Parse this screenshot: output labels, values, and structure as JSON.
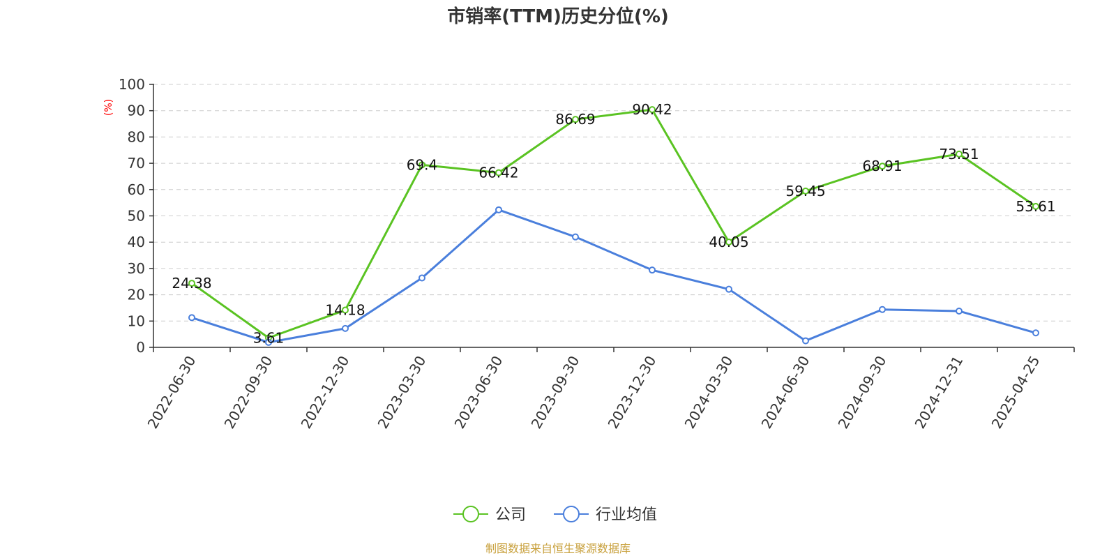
{
  "chart_data": {
    "type": "line",
    "title": "市销率(TTM)历史分位(%)",
    "ylabel": "(%)",
    "xlabel": "",
    "ylim": [
      0,
      100
    ],
    "yticks": [
      0,
      10,
      20,
      30,
      40,
      50,
      60,
      70,
      80,
      90,
      100
    ],
    "grid": true,
    "legend_position": "bottom-center",
    "categories": [
      "2022-06-30",
      "2022-09-30",
      "2022-12-30",
      "2023-03-30",
      "2023-06-30",
      "2023-09-30",
      "2023-12-30",
      "2024-03-30",
      "2024-06-30",
      "2024-09-30",
      "2024-12-31",
      "2025-04-25"
    ],
    "series": [
      {
        "name": "公司",
        "color": "#5ac322",
        "values": [
          24.38,
          3.61,
          14.18,
          69.4,
          66.42,
          86.69,
          90.42,
          40.05,
          59.45,
          68.91,
          73.51,
          53.61
        ],
        "data_labels": [
          "24.38",
          "3.61",
          "14.18",
          "69.4",
          "66.42",
          "86.69",
          "90.42",
          "40.05",
          "59.45",
          "68.91",
          "73.51",
          "53.61"
        ]
      },
      {
        "name": "行业均值",
        "color": "#4a7fdc",
        "values": [
          11.3,
          1.9,
          7.2,
          26.4,
          52.3,
          42.0,
          29.4,
          22.1,
          2.5,
          14.4,
          13.8,
          5.5
        ]
      }
    ],
    "source": "制图数据来自恒生聚源数据库"
  }
}
